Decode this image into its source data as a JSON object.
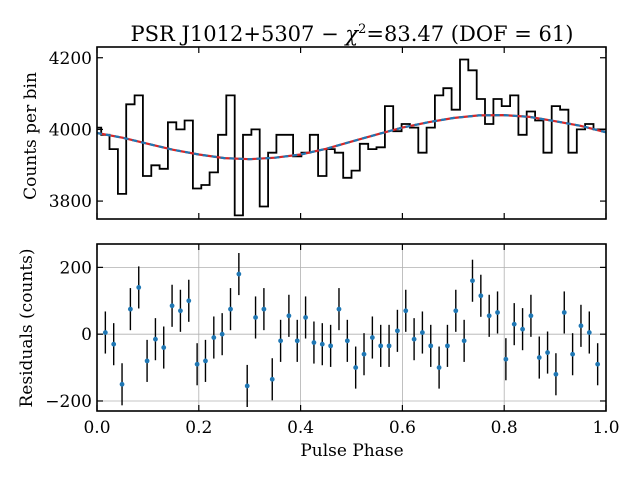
{
  "chart_data": [
    {
      "type": "line",
      "panel": "top",
      "title": "PSR J1012+5307 − χ²=83.47 (DOF = 61)",
      "title_parts": {
        "name": "PSR J1012+5307",
        "dash": "−",
        "chi": "χ",
        "sup": "2",
        "rest": "=83.47 (DOF = 61)"
      },
      "xlabel": "",
      "ylabel": "Counts per bin",
      "xlim": [
        0.0,
        1.0
      ],
      "ylim": [
        3750,
        4230
      ],
      "yticks": [
        3800,
        4000,
        4200
      ],
      "ytick_labels": [
        "3800",
        "4000",
        "4200"
      ],
      "grid": false,
      "series": [
        {
          "name": "counts",
          "style": "steps-mid",
          "color": "#000000",
          "x": [
            0.0,
            0.0164,
            0.0328,
            0.0492,
            0.0656,
            0.082,
            0.0984,
            0.1148,
            0.1311,
            0.1475,
            0.1639,
            0.1803,
            0.1967,
            0.2131,
            0.2295,
            0.2459,
            0.2623,
            0.2787,
            0.2951,
            0.3115,
            0.3279,
            0.3443,
            0.3607,
            0.377,
            0.3934,
            0.4098,
            0.4262,
            0.4426,
            0.459,
            0.4754,
            0.4918,
            0.5082,
            0.5246,
            0.541,
            0.5574,
            0.5738,
            0.5902,
            0.6066,
            0.623,
            0.6393,
            0.6557,
            0.6721,
            0.6885,
            0.7049,
            0.7213,
            0.7377,
            0.7541,
            0.7705,
            0.7869,
            0.8033,
            0.8197,
            0.8361,
            0.8525,
            0.8689,
            0.8852,
            0.9016,
            0.918,
            0.9344,
            0.9508,
            0.9672,
            0.9836,
            1.0
          ],
          "y": [
            4005,
            3985,
            3945,
            3820,
            4070,
            4095,
            3870,
            3900,
            3890,
            4020,
            4000,
            4025,
            3835,
            3845,
            3880,
            3985,
            4095,
            3760,
            3985,
            4000,
            3785,
            3935,
            3985,
            3985,
            3925,
            3935,
            3985,
            3870,
            3945,
            3935,
            3865,
            3885,
            3960,
            3945,
            3950,
            4065,
            3995,
            4015,
            4005,
            3935,
            4005,
            4095,
            4115,
            4055,
            4195,
            4165,
            4085,
            4015,
            4085,
            4065,
            4095,
            3985,
            4050,
            4025,
            3935,
            4065,
            4055,
            3935,
            4000,
            4015,
            4000,
            4000
          ]
        },
        {
          "name": "model",
          "style": "line",
          "color": "#d62728",
          "x": [
            0.0,
            0.05,
            0.1,
            0.15,
            0.2,
            0.25,
            0.3,
            0.35,
            0.4,
            0.45,
            0.5,
            0.55,
            0.6,
            0.65,
            0.7,
            0.75,
            0.8,
            0.85,
            0.9,
            0.95,
            1.0
          ],
          "y": [
            3990,
            3977,
            3960,
            3943,
            3930,
            3920,
            3917,
            3921,
            3930,
            3946,
            3966,
            3986,
            4005,
            4020,
            4032,
            4039,
            4040,
            4035,
            4023,
            4010,
            3992
          ]
        },
        {
          "name": "model-alt",
          "style": "dashed",
          "color": "#1f77b4",
          "x": [
            0.0,
            0.05,
            0.1,
            0.15,
            0.2,
            0.25,
            0.3,
            0.35,
            0.4,
            0.45,
            0.5,
            0.55,
            0.6,
            0.65,
            0.7,
            0.75,
            0.8,
            0.85,
            0.9,
            0.95,
            1.0
          ],
          "y": [
            3990,
            3977,
            3960,
            3943,
            3930,
            3920,
            3917,
            3921,
            3930,
            3946,
            3966,
            3986,
            4005,
            4020,
            4032,
            4039,
            4040,
            4035,
            4023,
            4010,
            3992
          ]
        }
      ]
    },
    {
      "type": "scatter",
      "panel": "bottom",
      "title": "",
      "xlabel": "Pulse Phase",
      "ylabel": "Residuals (counts)",
      "xlim": [
        0.0,
        1.0
      ],
      "ylim": [
        -230,
        270
      ],
      "xticks": [
        0.0,
        0.2,
        0.4,
        0.6,
        0.8,
        1.0
      ],
      "xtick_labels": [
        "0.0",
        "0.2",
        "0.4",
        "0.6",
        "0.8",
        "1.0"
      ],
      "yticks": [
        -200,
        0,
        200
      ],
      "ytick_labels": [
        "−200",
        "0",
        "200"
      ],
      "grid": true,
      "error": 63,
      "series": [
        {
          "name": "residuals",
          "color": "#1f77b4",
          "x": [
            0.0164,
            0.0328,
            0.0492,
            0.0656,
            0.082,
            0.0984,
            0.1148,
            0.1311,
            0.1475,
            0.1639,
            0.1803,
            0.1967,
            0.2131,
            0.2295,
            0.2459,
            0.2623,
            0.2787,
            0.2951,
            0.3115,
            0.3279,
            0.3443,
            0.3607,
            0.377,
            0.3934,
            0.4098,
            0.4262,
            0.4426,
            0.459,
            0.4754,
            0.4918,
            0.5082,
            0.5246,
            0.541,
            0.5574,
            0.5738,
            0.5902,
            0.6066,
            0.623,
            0.6393,
            0.6557,
            0.6721,
            0.6885,
            0.7049,
            0.7213,
            0.7377,
            0.7541,
            0.7705,
            0.7869,
            0.8033,
            0.8197,
            0.8361,
            0.8525,
            0.8689,
            0.8852,
            0.9016,
            0.918,
            0.9344,
            0.9508,
            0.9672,
            0.9836
          ],
          "y": [
            5,
            -30,
            -150,
            75,
            140,
            -80,
            -15,
            -40,
            85,
            70,
            100,
            -90,
            -80,
            -10,
            0,
            75,
            180,
            -155,
            50,
            75,
            -135,
            -20,
            55,
            -20,
            50,
            -25,
            -30,
            -35,
            75,
            -20,
            -100,
            -60,
            -10,
            -35,
            -35,
            10,
            70,
            -15,
            5,
            -35,
            -100,
            -35,
            70,
            -20,
            160,
            115,
            55,
            65,
            -75,
            30,
            15,
            55,
            -70,
            -55,
            -120,
            65,
            -60,
            25,
            5,
            -90
          ]
        }
      ]
    }
  ]
}
